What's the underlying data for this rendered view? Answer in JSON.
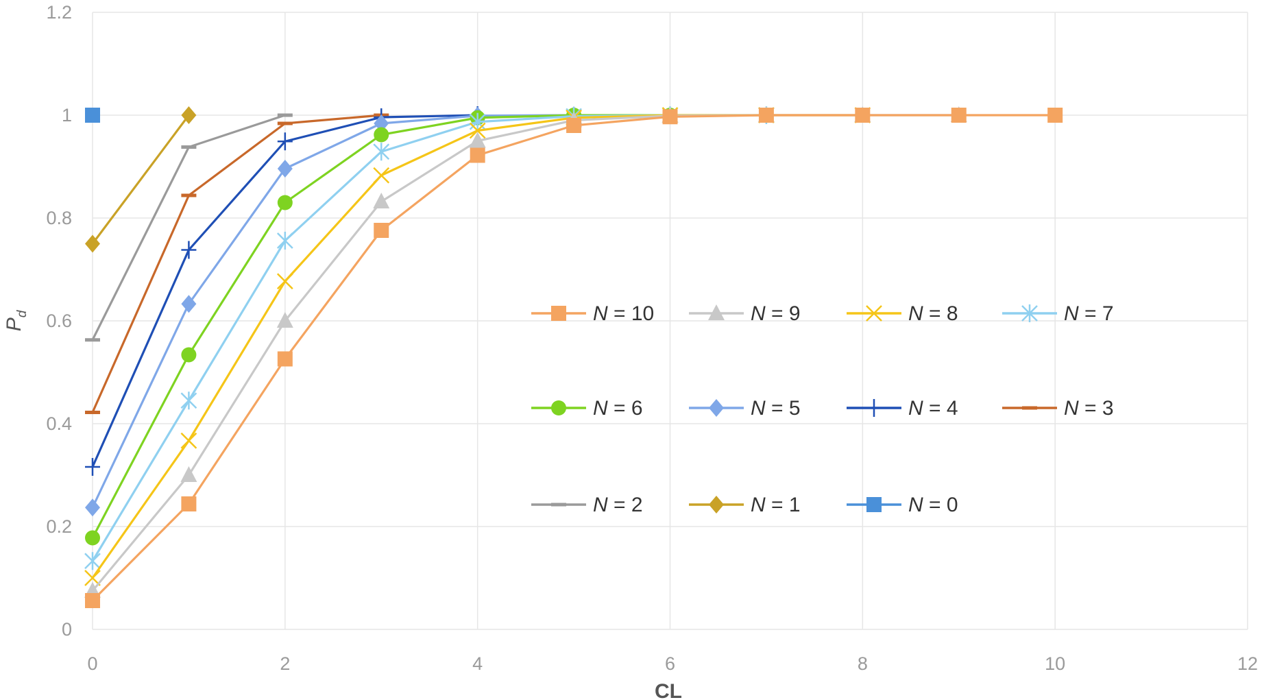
{
  "chart_data": {
    "type": "line",
    "title": "",
    "xlabel": "CL",
    "ylabel_main": "P",
    "ylabel_sub": "d",
    "xlim": [
      0,
      12
    ],
    "ylim": [
      0,
      1.2
    ],
    "xticks": [
      "0",
      "2",
      "4",
      "6",
      "8",
      "10",
      "12"
    ],
    "yticks": [
      "0",
      "0.2",
      "0.4",
      "0.6",
      "0.8",
      "1",
      "1.2"
    ],
    "grid": true,
    "legend_position": "center-right",
    "series": [
      {
        "name": "N = 10",
        "color": "#f4a460",
        "marker": "square",
        "x": [
          0,
          1,
          2,
          3,
          4,
          5,
          6,
          7,
          8,
          9,
          10
        ],
        "y": [
          0.056,
          0.244,
          0.526,
          0.776,
          0.922,
          0.98,
          0.997,
          1,
          1,
          1,
          1
        ]
      },
      {
        "name": "N = 9",
        "color": "#c8c8c8",
        "marker": "triangle",
        "x": [
          0,
          1,
          2,
          3,
          4,
          5,
          6,
          7,
          8,
          9
        ],
        "y": [
          0.075,
          0.3,
          0.6,
          0.832,
          0.95,
          0.99,
          0.999,
          1,
          1,
          1
        ]
      },
      {
        "name": "N = 8",
        "color": "#f5c518",
        "marker": "x",
        "x": [
          0,
          1,
          2,
          3,
          4,
          5,
          6,
          7,
          8
        ],
        "y": [
          0.1,
          0.367,
          0.677,
          0.883,
          0.97,
          0.995,
          1,
          1,
          1
        ]
      },
      {
        "name": "N = 7",
        "color": "#8fd0f0",
        "marker": "asterisk",
        "x": [
          0,
          1,
          2,
          3,
          4,
          5,
          6,
          7
        ],
        "y": [
          0.133,
          0.445,
          0.756,
          0.929,
          0.987,
          0.998,
          1,
          1
        ]
      },
      {
        "name": "N = 6",
        "color": "#7ed321",
        "marker": "circle",
        "x": [
          0,
          1,
          2,
          3,
          4,
          5,
          6
        ],
        "y": [
          0.178,
          0.534,
          0.83,
          0.962,
          0.995,
          1,
          1
        ]
      },
      {
        "name": "N = 5",
        "color": "#7fa7e8",
        "marker": "diamond",
        "x": [
          0,
          1,
          2,
          3,
          4,
          5
        ],
        "y": [
          0.237,
          0.633,
          0.896,
          0.984,
          0.999,
          1
        ]
      },
      {
        "name": "N = 4",
        "color": "#1f4fb5",
        "marker": "plus",
        "x": [
          0,
          1,
          2,
          3,
          4
        ],
        "y": [
          0.316,
          0.738,
          0.949,
          0.996,
          1
        ]
      },
      {
        "name": "N = 3",
        "color": "#c8682a",
        "marker": "dash",
        "x": [
          0,
          1,
          2,
          3
        ],
        "y": [
          0.422,
          0.844,
          0.984,
          1
        ]
      },
      {
        "name": "N = 2",
        "color": "#9a9a9a",
        "marker": "dash",
        "x": [
          0,
          1,
          2
        ],
        "y": [
          0.563,
          0.938,
          1
        ]
      },
      {
        "name": "N = 1",
        "color": "#c9a227",
        "marker": "diamond",
        "x": [
          0,
          1
        ],
        "y": [
          0.75,
          1
        ]
      },
      {
        "name": "N = 0",
        "color": "#4a90d9",
        "marker": "square",
        "x": [
          0
        ],
        "y": [
          1
        ]
      }
    ]
  }
}
